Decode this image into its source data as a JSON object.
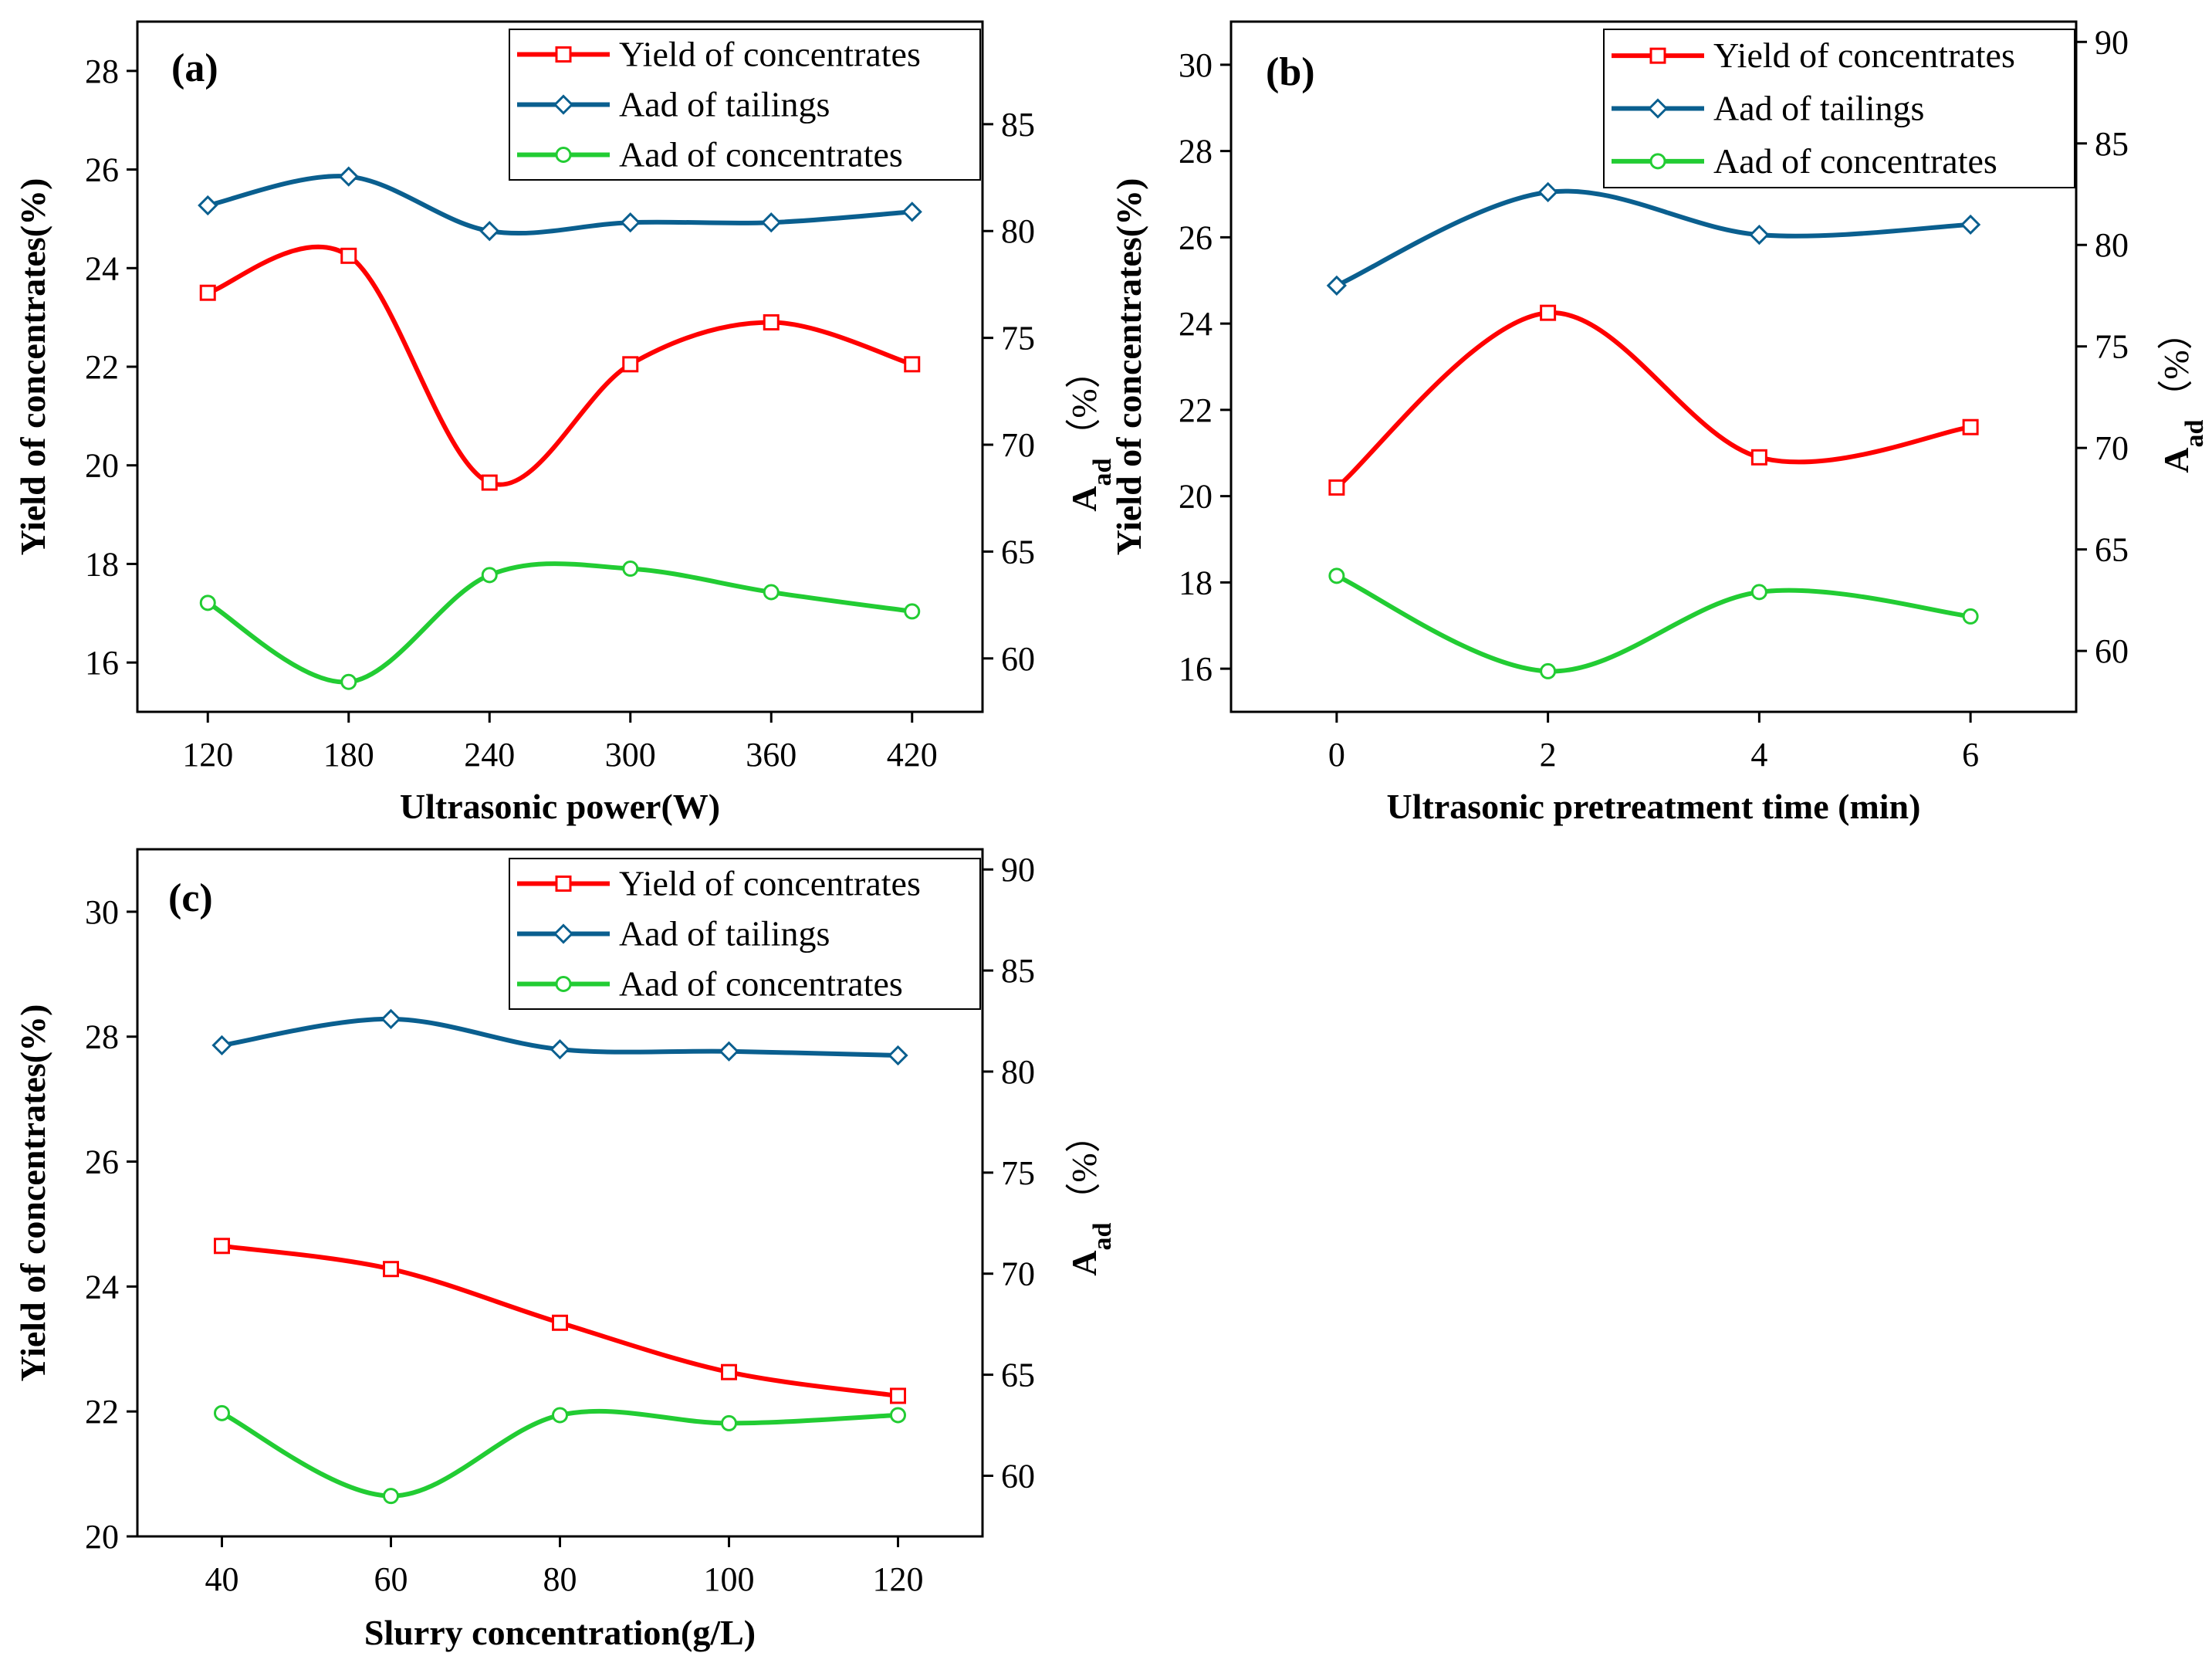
{
  "colors": {
    "yield": "#ff0000",
    "tailings": "#0a5f8f",
    "concentrates": "#22cc33",
    "axis": "#000000"
  },
  "chart_data": [
    {
      "type": "line",
      "panel_label": "(a)",
      "xlabel": "Ultrasonic power(W)",
      "ylabel_left": "Yield of concentrates(%)",
      "ylabel_right_main": "A",
      "ylabel_right_sub": "ad",
      "ylabel_right_unit": "（%）",
      "categories": [
        "120",
        "180",
        "240",
        "300",
        "360",
        "420"
      ],
      "x": [
        120,
        180,
        240,
        300,
        360,
        420
      ],
      "xlim": [
        90,
        450
      ],
      "ylim_left": [
        15,
        29
      ],
      "yticks_left": [
        16,
        18,
        20,
        22,
        24,
        26,
        28
      ],
      "ylim_right": [
        57.5,
        89.8
      ],
      "yticks_right": [
        60,
        65,
        70,
        75,
        80,
        85
      ],
      "legend": [
        "Yield of concentrates",
        "Aad of tailings",
        "Aad of concentrates"
      ],
      "legend_position": "top-right",
      "series": [
        {
          "name": "Yield of concentrates",
          "axis": "left",
          "marker": "square",
          "color": "#ff0000",
          "values": [
            23.5,
            24.25,
            19.65,
            22.05,
            22.9,
            22.05
          ]
        },
        {
          "name": "Aad of tailings",
          "axis": "right",
          "marker": "diamond",
          "color": "#0a5f8f",
          "values": [
            81.2,
            82.55,
            80.0,
            80.4,
            80.4,
            80.9
          ]
        },
        {
          "name": "Aad of concentrates",
          "axis": "right",
          "marker": "circle",
          "color": "#22cc33",
          "values": [
            62.6,
            58.9,
            63.9,
            64.2,
            63.1,
            62.2
          ]
        }
      ]
    },
    {
      "type": "line",
      "panel_label": "(b)",
      "xlabel": "Ultrasonic pretreatment time (min)",
      "ylabel_left": "Yield of concentrates(%)",
      "ylabel_right_main": "A",
      "ylabel_right_sub": "ad",
      "ylabel_right_unit": "（%）",
      "categories": [
        "0",
        "2",
        "4",
        "6"
      ],
      "x": [
        0,
        2,
        4,
        6
      ],
      "xlim": [
        -1,
        7
      ],
      "ylim_left": [
        15,
        31
      ],
      "yticks_left": [
        16,
        18,
        20,
        22,
        24,
        26,
        28,
        30
      ],
      "ylim_right": [
        57,
        91
      ],
      "yticks_right": [
        60,
        65,
        70,
        75,
        80,
        85,
        90
      ],
      "legend": [
        "Yield of concentrates",
        "Aad of tailings",
        "Aad of concentrates"
      ],
      "legend_position": "top-right",
      "series": [
        {
          "name": "Yield of concentrates",
          "axis": "left",
          "marker": "square",
          "color": "#ff0000",
          "values": [
            20.2,
            24.25,
            20.9,
            21.6
          ]
        },
        {
          "name": "Aad of tailings",
          "axis": "right",
          "marker": "diamond",
          "color": "#0a5f8f",
          "values": [
            78.0,
            82.6,
            80.5,
            81.0
          ]
        },
        {
          "name": "Aad of concentrates",
          "axis": "right",
          "marker": "circle",
          "color": "#22cc33",
          "values": [
            63.7,
            59.0,
            62.9,
            61.7
          ]
        }
      ]
    },
    {
      "type": "line",
      "panel_label": "(c)",
      "xlabel": "Slurry concentration(g/L)",
      "ylabel_left": "Yield of concentrates(%)",
      "ylabel_right_main": "A",
      "ylabel_right_sub": "ad",
      "ylabel_right_unit": "（%）",
      "categories": [
        "40",
        "60",
        "80",
        "100",
        "120"
      ],
      "x": [
        40,
        60,
        80,
        100,
        120
      ],
      "xlim": [
        30,
        130
      ],
      "ylim_left": [
        20,
        31
      ],
      "yticks_left": [
        20,
        22,
        24,
        26,
        28,
        30
      ],
      "ylim_right": [
        57,
        91
      ],
      "yticks_right": [
        60,
        65,
        70,
        75,
        80,
        85,
        90
      ],
      "legend": [
        "Yield of concentrates",
        "Aad of tailings",
        "Aad of concentrates"
      ],
      "legend_position": "top-right",
      "series": [
        {
          "name": "Yield of concentrates",
          "axis": "left",
          "marker": "square",
          "color": "#ff0000",
          "values": [
            24.65,
            24.28,
            23.42,
            22.63,
            22.25
          ]
        },
        {
          "name": "Aad of tailings",
          "axis": "right",
          "marker": "diamond",
          "color": "#0a5f8f",
          "values": [
            81.3,
            82.6,
            81.1,
            81.0,
            80.8
          ]
        },
        {
          "name": "Aad of concentrates",
          "axis": "right",
          "marker": "circle",
          "color": "#22cc33",
          "values": [
            63.1,
            59.0,
            63.0,
            62.6,
            63.0
          ]
        }
      ]
    }
  ]
}
